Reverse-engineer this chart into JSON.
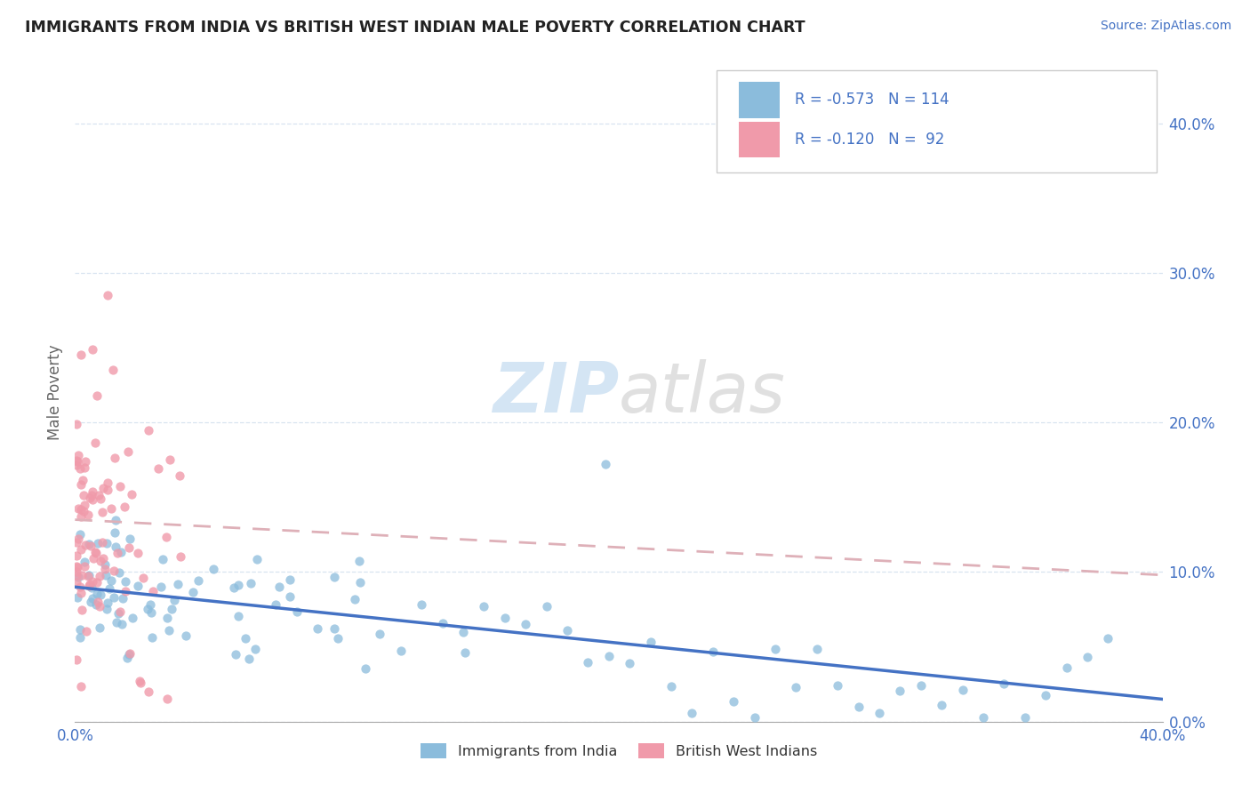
{
  "title": "IMMIGRANTS FROM INDIA VS BRITISH WEST INDIAN MALE POVERTY CORRELATION CHART",
  "source": "Source: ZipAtlas.com",
  "ylabel": "Male Poverty",
  "ytick_vals": [
    0.0,
    0.1,
    0.2,
    0.3,
    0.4
  ],
  "xlim": [
    0.0,
    0.4
  ],
  "ylim": [
    0.0,
    0.44
  ],
  "series_india_color": "#8bbcdc",
  "series_bwi_color": "#f09aaa",
  "trendline_india_color": "#4472c4",
  "trendline_bwi_color": "#deb0b8",
  "background_color": "#ffffff",
  "grid_color": "#d8e4f0",
  "title_color": "#222222",
  "axis_color": "#4472c4",
  "legend_R_india": "R = -0.573",
  "legend_N_india": "N = 114",
  "legend_R_bwi": "R = -0.120",
  "legend_N_bwi": "N =  92",
  "legend_label_india": "Immigrants from India",
  "legend_label_bwi": "British West Indians",
  "watermark_zip_color": "#b8d4ee",
  "watermark_atlas_color": "#cccccc"
}
